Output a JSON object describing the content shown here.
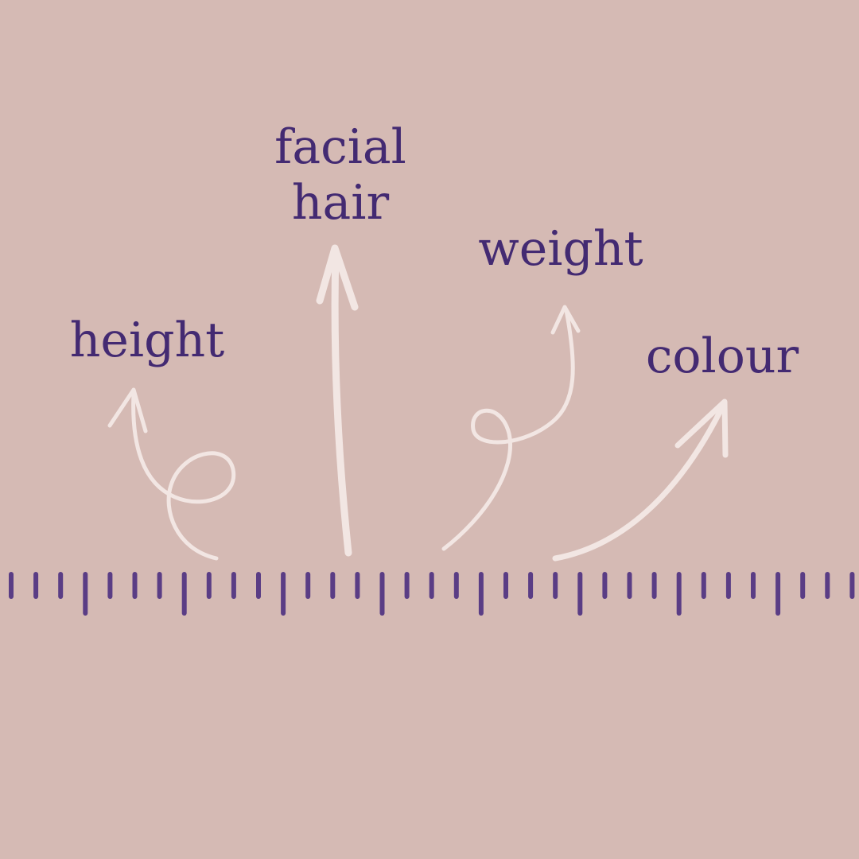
{
  "colors": {
    "background": "#d5bab4",
    "label_text": "#432a72",
    "arrow": "#f2e6e3",
    "ruler_tick": "#5a3d85"
  },
  "labels": {
    "height": "height",
    "facial_hair_line1": "facial",
    "facial_hair_line2": "hair",
    "weight": "weight",
    "colour": "colour"
  },
  "arrows": [
    {
      "name": "height-arrow",
      "style": "looped"
    },
    {
      "name": "facial-hair-arrow",
      "style": "straight"
    },
    {
      "name": "weight-arrow",
      "style": "looped"
    },
    {
      "name": "colour-arrow",
      "style": "curved"
    }
  ],
  "ruler": {
    "tick_count": 35,
    "major_every": 4
  }
}
